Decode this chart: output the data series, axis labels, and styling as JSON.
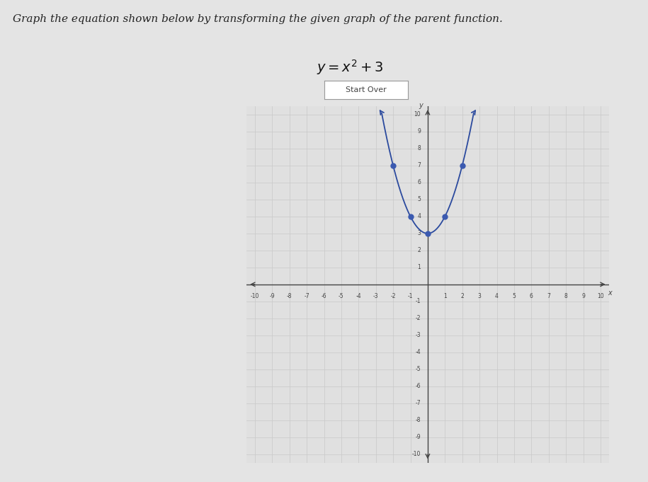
{
  "title": "Graph the equation shown below by transforming the given graph of the parent function.",
  "equation": "y = x^{2} + 3",
  "button_text": "Start Over",
  "xmin": -10,
  "xmax": 10,
  "ymin": -10,
  "ymax": 10,
  "key_points_x": [
    0,
    -1,
    1,
    -2,
    2
  ],
  "key_points_y": [
    3,
    4,
    4,
    7,
    7
  ],
  "curve_color": "#2b4a9e",
  "dot_color": "#3b5ab0",
  "dot_size": 25,
  "axis_color": "#444444",
  "grid_color": "#c8c8c8",
  "bg_color": "#e4e4e4",
  "plot_bg_color": "#e0e0e0",
  "title_fontsize": 11,
  "equation_fontsize": 14
}
